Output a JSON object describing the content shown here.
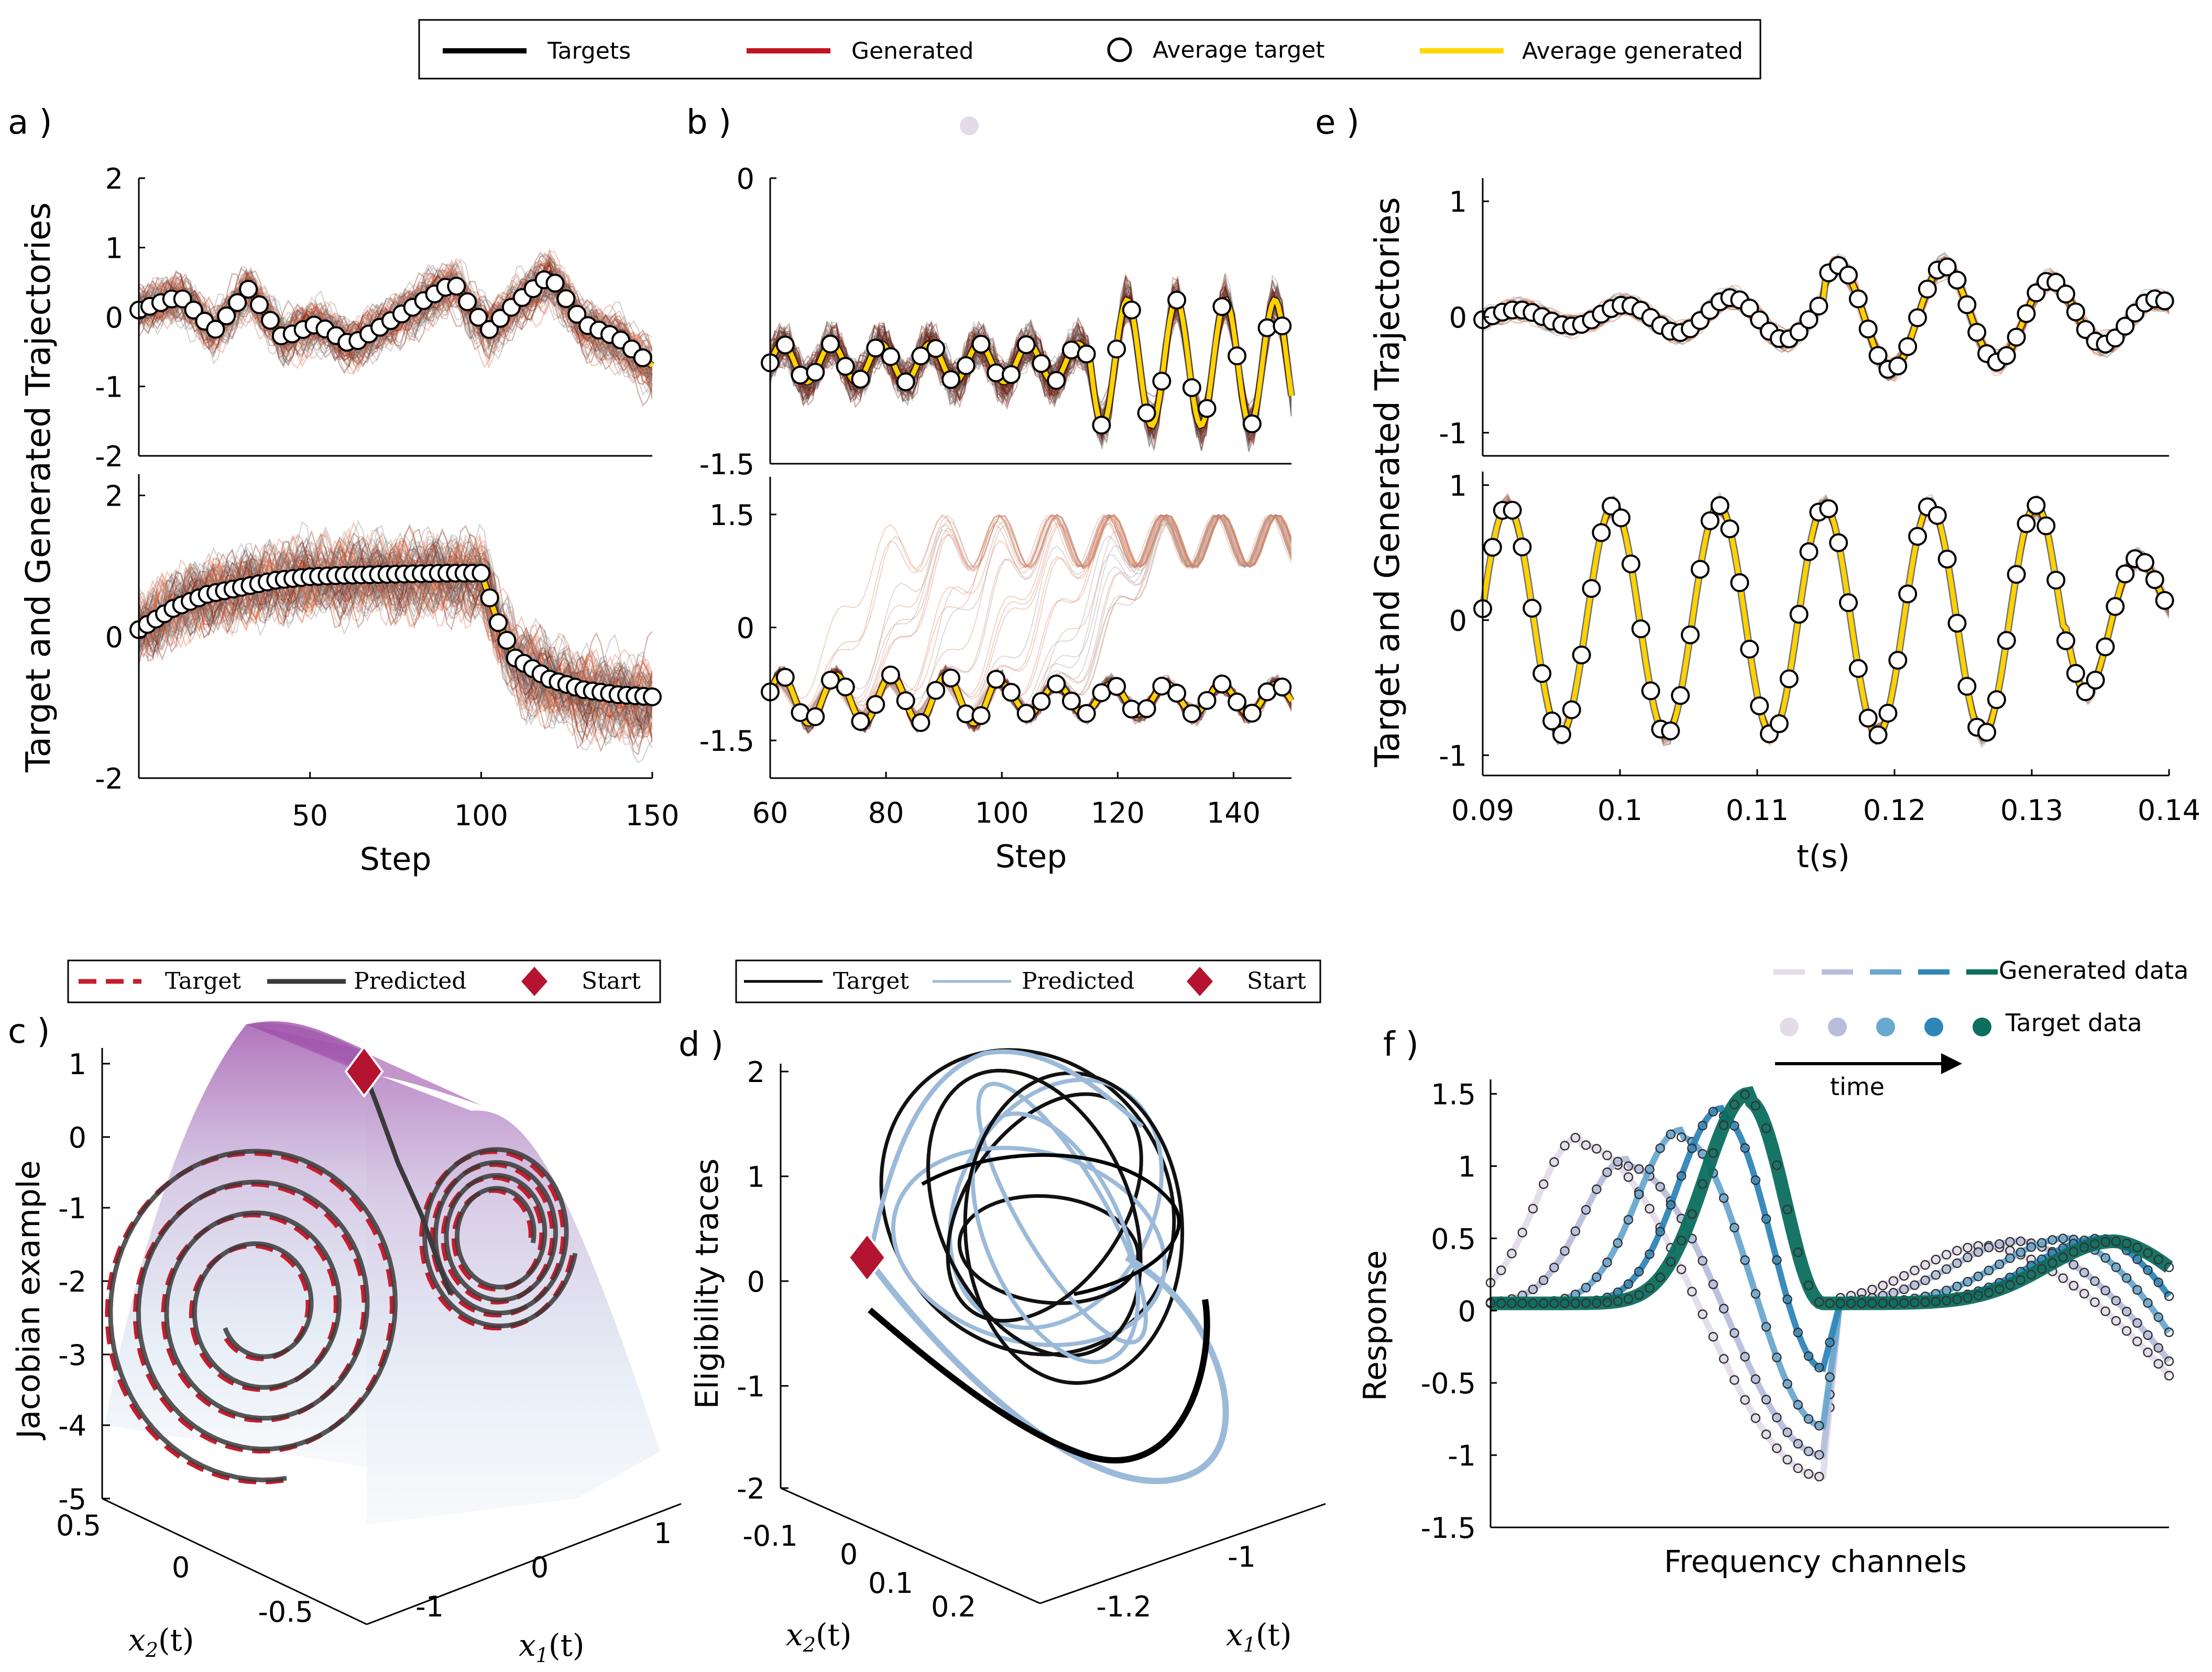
{
  "legend_top": {
    "items": [
      {
        "label": "Targets",
        "kind": "line",
        "color": "#000000"
      },
      {
        "label": "Generated",
        "kind": "line",
        "color": "#c0141f"
      },
      {
        "label": "Average target",
        "kind": "circle",
        "color": "#000000"
      },
      {
        "label": "Average generated",
        "kind": "line",
        "color": "#ffd700"
      }
    ]
  },
  "panel_labels": {
    "a": "a )",
    "b": "b )",
    "e": "e )",
    "c": "c )",
    "d": "d )",
    "f": "f )"
  },
  "colors": {
    "target_gray": "#5c5c5c",
    "generated_red": "#d9481f",
    "avg_gen": "#ffd200",
    "dark_red": "#6b1005",
    "start": "#b51430",
    "surface_top": "#9c4fa8",
    "pred_blue": "#9bbad9"
  },
  "chart_data": [
    {
      "id": "a",
      "type": "line",
      "ylabel": "Target and Generated Trajectories",
      "xlabel": "Step",
      "xlim": [
        0,
        150
      ],
      "xticks": [
        50,
        100,
        150
      ],
      "subplots": [
        {
          "ylim": [
            -2,
            2
          ],
          "yticks": [
            2,
            1,
            0,
            -1,
            -2
          ],
          "avg_series": {
            "x": [
              0,
              12,
              22,
              32,
              42,
              52,
              62,
              72,
              82,
              92,
              102,
              110,
              120,
              130,
              140,
              150
            ],
            "y": [
              0.1,
              0.3,
              -0.2,
              0.4,
              -0.3,
              -0.1,
              -0.4,
              -0.1,
              0.2,
              0.5,
              -0.2,
              0.2,
              0.6,
              -0.1,
              -0.3,
              -0.7
            ]
          }
        },
        {
          "ylim": [
            -2,
            2.3
          ],
          "yticks": [
            2,
            0,
            -2
          ],
          "avg_series": {
            "x": [
              0,
              10,
              20,
              30,
              40,
              50,
              60,
              70,
              80,
              90,
              100,
              105,
              110,
              120,
              130,
              140,
              150
            ],
            "y": [
              0.1,
              0.4,
              0.6,
              0.7,
              0.8,
              0.85,
              0.87,
              0.88,
              0.89,
              0.9,
              0.9,
              0.2,
              -0.3,
              -0.6,
              -0.75,
              -0.82,
              -0.85
            ]
          }
        }
      ]
    },
    {
      "id": "b",
      "type": "line",
      "xlabel": "Step",
      "xlim": [
        60,
        150
      ],
      "xticks": [
        60,
        80,
        100,
        120,
        140
      ],
      "subplots": [
        {
          "ylim": [
            -1.5,
            0
          ],
          "ytick_labels": [
            "0",
            "-1.5"
          ],
          "ytick_values": [
            0,
            -1.5
          ],
          "avg_center": -0.97,
          "avg_amplitude_range": [
            0.1,
            0.33
          ],
          "avg_period": 8.5
        },
        {
          "ylim": [
            -2.0,
            2.0
          ],
          "ytick_labels": [
            "1.5",
            "0",
            "-1.5"
          ],
          "ytick_values": [
            1.5,
            0,
            -1.5
          ],
          "avg_center": -0.95,
          "avg_amplitude_range": [
            0.2,
            0.32
          ],
          "avg_period": 9.5
        }
      ]
    },
    {
      "id": "e",
      "type": "line",
      "ylabel": "Target and Generated Trajectories",
      "xlabel": "t(s)",
      "xlim": [
        0.09,
        0.14
      ],
      "xticks": [
        0.09,
        0.1,
        0.11,
        0.12,
        0.13,
        0.14
      ],
      "xtick_labels": [
        "0.09",
        "0.1",
        "0.11",
        "0.12",
        "0.13",
        "0.14"
      ],
      "subplots": [
        {
          "ylim": [
            -1.2,
            1.2
          ],
          "yticks": [
            1,
            0,
            -1
          ],
          "avg_amplitude_range": [
            0.05,
            0.45
          ]
        },
        {
          "ylim": [
            -1.15,
            1.1
          ],
          "yticks": [
            1,
            0,
            -1
          ],
          "avg_amplitude": 0.85,
          "avg_period": 0.0077
        }
      ]
    },
    {
      "id": "c",
      "type": "line",
      "legend": [
        "Target",
        "Predicted",
        "Start"
      ],
      "zlabel": "Jacobian example",
      "zticks": [
        "1",
        "0",
        "-1",
        "-2",
        "-3",
        "-4",
        "-5"
      ],
      "xlabel": "x_1(t)",
      "xlabel_base": "x",
      "xlabel_sub": "1",
      "xlabel_arg": "(t)",
      "xticks": [
        "-1",
        "0",
        "1"
      ],
      "ylabel": "x_2(t)",
      "ylabel_base": "x",
      "ylabel_sub": "2",
      "ylabel_arg": "(t)",
      "yticks": [
        "0.5",
        "0",
        "-0.5"
      ]
    },
    {
      "id": "d",
      "type": "line",
      "legend": [
        "Target",
        "Predicted",
        "Start"
      ],
      "zlabel": "Eligibility traces",
      "zticks": [
        "2",
        "1",
        "0",
        "-1",
        "-2"
      ],
      "xlabel": "x_1(t)",
      "xlabel_base": "x",
      "xlabel_sub": "1",
      "xlabel_arg": "(t)",
      "xticks": [
        "-1",
        "-1.2"
      ],
      "ylabel": "x_2(t)",
      "ylabel_base": "x",
      "ylabel_sub": "2",
      "ylabel_arg": "(t)",
      "yticks": [
        "-0.1",
        "0",
        "0.1",
        "0.2"
      ]
    },
    {
      "id": "f",
      "type": "line",
      "ylabel": "Response",
      "xlabel": "Frequency channels",
      "ylim": [
        -1.5,
        1.6
      ],
      "yticks": [
        1.5,
        1,
        0.5,
        0,
        -0.5,
        -1,
        -1.5
      ],
      "yticks_labels": [
        "1.5",
        "1",
        "0.5",
        "0",
        "-0.5",
        "-1",
        "-1.5"
      ],
      "legend": {
        "generated": "Generated data",
        "target": "Target data",
        "arrow": "time"
      },
      "time_colors": [
        "#e4dbea",
        "#b7bedb",
        "#6aa8cf",
        "#2f86b8",
        "#0b6e5e"
      ],
      "series": [
        {
          "name": "t1",
          "peak1": 1.15,
          "peak1_at": 0.13,
          "dip": -1.15,
          "dip_at": 0.49,
          "peak2": 0.45,
          "peak2_at": 0.73,
          "end": -0.45
        },
        {
          "name": "t2",
          "peak1": 1.0,
          "peak1_at": 0.2,
          "dip": -1.0,
          "dip_at": 0.49,
          "peak2": 0.48,
          "peak2_at": 0.78,
          "end": -0.35
        },
        {
          "name": "t3",
          "peak1": 1.2,
          "peak1_at": 0.28,
          "dip": -0.8,
          "dip_at": 0.49,
          "peak2": 0.5,
          "peak2_at": 0.85,
          "end": -0.15
        },
        {
          "name": "t4",
          "peak1": 1.35,
          "peak1_at": 0.34,
          "dip": -0.4,
          "dip_at": 0.49,
          "peak2": 0.5,
          "peak2_at": 0.9,
          "end": 0.1
        },
        {
          "name": "t5",
          "peak1": 1.45,
          "peak1_at": 0.38,
          "dip": 0.05,
          "dip_at": 0.49,
          "peak2": 0.48,
          "peak2_at": 0.92,
          "end": 0.3
        }
      ]
    }
  ]
}
